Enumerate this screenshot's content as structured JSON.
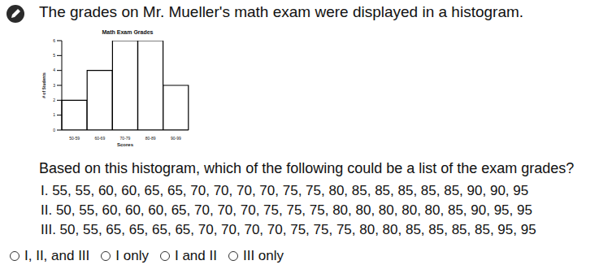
{
  "intro": "The grades on Mr. Mueller's math exam were displayed in a histogram.",
  "chart_data": {
    "type": "bar",
    "title": "Math Exam Grades",
    "x_label": "Scores",
    "y_label": "# of Students",
    "categories": [
      "50-59",
      "60-69",
      "70-79",
      "80-89",
      "90-99"
    ],
    "values": [
      2,
      4,
      6,
      6,
      3
    ],
    "color": "#ffffff",
    "ylim": [
      0,
      6
    ],
    "yticks": [
      0,
      1,
      2,
      3,
      4,
      5,
      6
    ],
    "grid": false
  },
  "question": "Based on this histogram, which of the following could be a list of the exam grades?",
  "statements": [
    "I. 55, 55, 60, 60, 65, 65, 70, 70, 70, 70, 75, 75, 80, 85, 85, 85, 85, 85, 90, 90, 95",
    "II. 50, 55, 60, 60, 60, 65, 70, 70, 70, 75, 75, 75, 80, 80, 80, 80, 80, 85, 90, 95, 95",
    "III. 50, 55, 65, 65, 65, 65, 70, 70, 70, 70, 75, 75, 75, 80, 80, 85, 85, 85, 85, 95, 95"
  ],
  "options": [
    "I, II, and III",
    "I only",
    "I and II",
    "III only"
  ]
}
